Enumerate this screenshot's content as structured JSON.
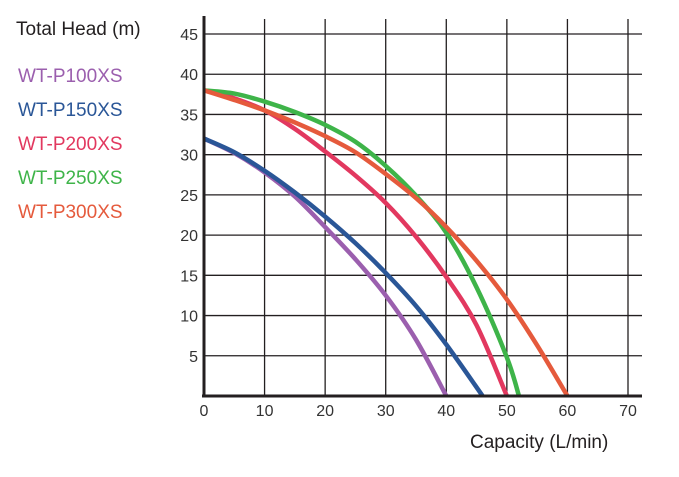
{
  "chart_data": {
    "type": "line",
    "title": "",
    "xlabel": "Capacity (L/min)",
    "ylabel": "Total Head (m)",
    "xlim": [
      0,
      70
    ],
    "ylim": [
      0,
      45
    ],
    "x_ticks": [
      0,
      10,
      20,
      30,
      40,
      50,
      60,
      70
    ],
    "y_ticks": [
      5,
      10,
      15,
      20,
      25,
      30,
      35,
      40,
      45
    ],
    "grid": true,
    "legend_position": "left",
    "series": [
      {
        "name": "WT-P100XS",
        "color": "#9b5fae",
        "x": [
          0,
          5,
          10,
          15,
          20,
          25,
          30,
          35,
          40
        ],
        "y": [
          32,
          30.2,
          27.8,
          24.8,
          21,
          17,
          12.5,
          7,
          0
        ]
      },
      {
        "name": "WT-P150XS",
        "color": "#2a5697",
        "x": [
          0,
          5,
          10,
          15,
          20,
          25,
          30,
          35,
          40,
          46
        ],
        "y": [
          32,
          30.3,
          28,
          25.3,
          22.3,
          19,
          15.3,
          11.2,
          6.4,
          0
        ]
      },
      {
        "name": "WT-P200XS",
        "color": "#e2385f",
        "x": [
          0,
          5,
          10,
          15,
          20,
          25,
          30,
          35,
          40,
          45,
          50
        ],
        "y": [
          38,
          37,
          35.5,
          33.2,
          30.4,
          27.4,
          24,
          19.8,
          14.8,
          8.8,
          0
        ]
      },
      {
        "name": "WT-P250XS",
        "color": "#3eb449",
        "x": [
          0,
          5,
          10,
          15,
          20,
          25,
          30,
          35,
          40,
          45,
          50,
          52
        ],
        "y": [
          38,
          37.6,
          36.6,
          35.3,
          33.7,
          31.6,
          28.6,
          24.9,
          20.3,
          13.5,
          4.8,
          0
        ]
      },
      {
        "name": "WT-P300XS",
        "color": "#e55a3c",
        "x": [
          0,
          5,
          10,
          15,
          20,
          25,
          30,
          35,
          40,
          45,
          50,
          55,
          60
        ],
        "y": [
          38,
          36.8,
          35.5,
          34,
          32.3,
          30.3,
          27.6,
          24.6,
          21,
          16.8,
          12,
          6.3,
          0
        ]
      }
    ]
  }
}
